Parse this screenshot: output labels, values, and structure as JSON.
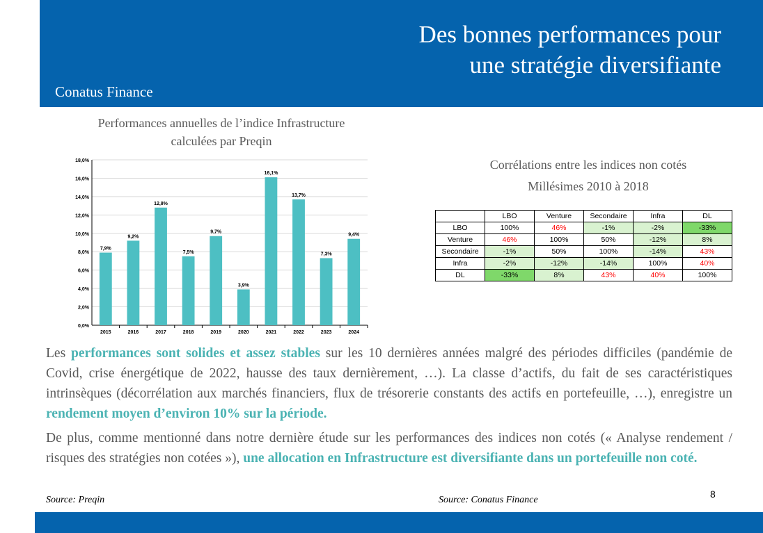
{
  "header": {
    "title_line1": "Des bonnes performances pour",
    "title_line2": "une stratégie diversifiante",
    "brand": "Conatus Finance"
  },
  "chart": {
    "title_line1": "Performances annuelles de l’indice Infrastructure",
    "title_line2": "calculées par Preqin"
  },
  "chart_data": {
    "type": "bar",
    "categories": [
      "2015",
      "2016",
      "2017",
      "2018",
      "2019",
      "2020",
      "2021",
      "2022",
      "2023",
      "2024"
    ],
    "values": [
      7.9,
      9.2,
      12.8,
      7.5,
      9.7,
      3.9,
      16.1,
      13.7,
      7.3,
      9.4
    ],
    "labels": [
      "7,9%",
      "9,2%",
      "12,8%",
      "7,5%",
      "9,7%",
      "3,9%",
      "16,1%",
      "13,7%",
      "7,3%",
      "9,4%"
    ],
    "yticks": [
      "0,0%",
      "2,0%",
      "4,0%",
      "6,0%",
      "8,0%",
      "10,0%",
      "12,0%",
      "14,0%",
      "16,0%",
      "18,0%"
    ],
    "ylim": [
      0,
      18
    ],
    "grid": true,
    "bar_color": "#4dbfc3"
  },
  "correlation": {
    "title_line1": "Corrélations entre les indices non cotés",
    "title_line2": "Millésimes 2010 à 2018",
    "columns": [
      "LBO",
      "Venture",
      "Secondaire",
      "Infra",
      "DL"
    ],
    "rows": [
      {
        "label": "LBO",
        "cells": [
          {
            "v": "100%",
            "s": ""
          },
          {
            "v": "46%",
            "s": "red"
          },
          {
            "v": "-1%",
            "s": "lg"
          },
          {
            "v": "-2%",
            "s": "lg"
          },
          {
            "v": "-33%",
            "s": "dg"
          }
        ]
      },
      {
        "label": "Venture",
        "cells": [
          {
            "v": "46%",
            "s": "red"
          },
          {
            "v": "100%",
            "s": ""
          },
          {
            "v": "50%",
            "s": ""
          },
          {
            "v": "-12%",
            "s": "lg"
          },
          {
            "v": "8%",
            "s": "lg"
          }
        ]
      },
      {
        "label": "Secondaire",
        "cells": [
          {
            "v": "-1%",
            "s": "lg"
          },
          {
            "v": "50%",
            "s": ""
          },
          {
            "v": "100%",
            "s": ""
          },
          {
            "v": "-14%",
            "s": "lg"
          },
          {
            "v": "43%",
            "s": "red"
          }
        ]
      },
      {
        "label": "Infra",
        "cells": [
          {
            "v": "-2%",
            "s": "lg"
          },
          {
            "v": "-12%",
            "s": "lg"
          },
          {
            "v": "-14%",
            "s": "lg"
          },
          {
            "v": "100%",
            "s": ""
          },
          {
            "v": "40%",
            "s": "red"
          }
        ]
      },
      {
        "label": "DL",
        "cells": [
          {
            "v": "-33%",
            "s": "dg"
          },
          {
            "v": "8%",
            "s": "lg"
          },
          {
            "v": "43%",
            "s": "red"
          },
          {
            "v": "40%",
            "s": "red"
          },
          {
            "v": "100%",
            "s": ""
          }
        ]
      }
    ]
  },
  "text": {
    "p1_a": "Les ",
    "p1_b": "performances sont solides et assez stables",
    "p1_c": " sur les 10 dernières années malgré des périodes difficiles (pandémie de Covid, crise énergétique de 2022, hausse des taux dernièrement, …). La classe d’actifs, du fait de ses caractéristiques intrinsèques (décorrélation aux marchés financiers, flux de trésorerie constants des actifs en portefeuille, …), enregistre un ",
    "p1_d": "rendement moyen d’environ 10% sur la période.",
    "p2_a": "De plus, comme mentionné dans notre dernière étude sur les performances des indices non cotés (« Analyse rendement / risques des stratégies non cotées »), ",
    "p2_b": "une allocation en Infrastructure est diversifiante dans un portefeuille non coté."
  },
  "footer": {
    "source_left": "Source: Preqin",
    "source_right": "Source: Conatus Finance",
    "page_number": "8"
  }
}
